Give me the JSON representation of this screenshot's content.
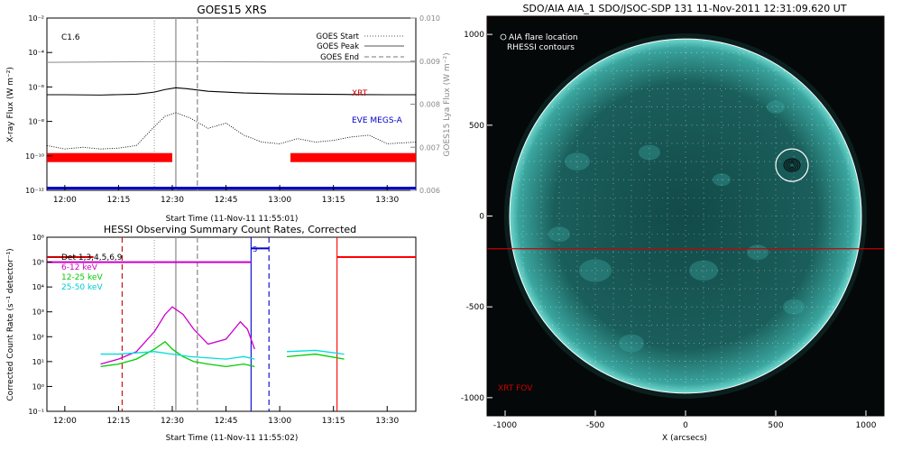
{
  "chart_data": [
    {
      "id": "goes",
      "type": "line",
      "title": "GOES15 XRS",
      "xlabel": "Start Time (11-Nov-11 11:55:01)",
      "ylabel": "X-ray Flux (W m⁻²)",
      "ylabel2": "GOES15 Lya Flux (W m⁻²)",
      "xlim": [
        "11:55",
        "13:38"
      ],
      "xticks": [
        "12:00",
        "12:15",
        "12:30",
        "12:45",
        "13:00",
        "13:15",
        "13:30"
      ],
      "ylim_log10": [
        -12,
        -2
      ],
      "yticks": [
        "10⁻¹²",
        "10⁻¹⁰",
        "10⁻⁸",
        "10⁻⁶",
        "10⁻⁴",
        "10⁻²"
      ],
      "ylim2": [
        0.006,
        0.01
      ],
      "yticks2": [
        "0.006",
        "0.007",
        "0.008",
        "0.009",
        "0.010"
      ],
      "flare_class": "C1.6",
      "legend": {
        "placement": "top-right",
        "items": [
          {
            "label": "GOES Start",
            "style": "dotted"
          },
          {
            "label": "GOES Peak",
            "style": "solid"
          },
          {
            "label": "GOES End",
            "style": "dashed"
          }
        ]
      },
      "event_times": {
        "start": "12:25",
        "peak": "12:31",
        "end": "12:37"
      },
      "series": [
        {
          "name": "",
          "color": "#000000",
          "x": [
            "11:55",
            "12:00",
            "12:10",
            "12:20",
            "12:25",
            "12:28",
            "12:31",
            "12:34",
            "12:40",
            "12:50",
            "13:00",
            "13:10",
            "13:20",
            "13:30",
            "13:38"
          ],
          "log10": [
            -6.45,
            -6.45,
            -6.47,
            -6.42,
            -6.3,
            -6.15,
            -6.05,
            -6.1,
            -6.25,
            -6.35,
            -6.4,
            -6.42,
            -6.44,
            -6.45,
            -6.45
          ]
        },
        {
          "name": "",
          "color": "#000000",
          "style": "dotted",
          "x": [
            "11:55",
            "12:00",
            "12:05",
            "12:10",
            "12:15",
            "12:20",
            "12:25",
            "12:28",
            "12:31",
            "12:35",
            "12:40",
            "12:45",
            "12:50",
            "12:55",
            "13:00",
            "13:05",
            "13:10",
            "13:15",
            "13:20",
            "13:25",
            "13:30",
            "13:38"
          ],
          "log10": [
            -9.4,
            -9.6,
            -9.5,
            -9.6,
            -9.55,
            -9.4,
            -8.3,
            -7.7,
            -7.5,
            -7.8,
            -8.4,
            -8.1,
            -8.8,
            -9.2,
            -9.3,
            -9.0,
            -9.2,
            -9.1,
            -8.9,
            -8.8,
            -9.3,
            -9.2
          ]
        }
      ],
      "lya_series": {
        "name": "",
        "color": "#888888",
        "x": [
          "11:55",
          "12:30",
          "13:00",
          "13:38"
        ],
        "values": [
          0.00897,
          0.00899,
          0.00898,
          0.00898
        ]
      },
      "bars": [
        {
          "name": "XRT",
          "color": "#ff0000",
          "label_color": "#cc0000",
          "spans": [
            [
              "11:55",
              "12:30"
            ],
            [
              "13:03",
              "13:38"
            ]
          ]
        },
        {
          "name": "EVE MEGS-A",
          "color": "#0000cc",
          "label_color": "#0000cc",
          "spans": [
            [
              "11:55",
              "13:38"
            ]
          ]
        }
      ]
    },
    {
      "id": "hessi",
      "type": "line",
      "title": "HESSI Observing Summary Count Rates, Corrected",
      "xlabel": "Start Time (11-Nov-11 11:55:02)",
      "ylabel": "Corrected Count Rate (s⁻¹ detector⁻¹)",
      "xlim": [
        "11:55",
        "13:38"
      ],
      "xticks": [
        "12:00",
        "12:15",
        "12:30",
        "12:45",
        "13:00",
        "13:15",
        "13:30"
      ],
      "ylim_log10": [
        -1,
        6
      ],
      "yticks": [
        "10⁻¹",
        "10⁰",
        "10¹",
        "10²",
        "10³",
        "10⁴",
        "10⁵",
        "10⁶"
      ],
      "legend": {
        "placement": "top-left",
        "header": "Det 1,3,4,5,6,9",
        "items": [
          {
            "label": "6-12 keV",
            "color": "#cc00cc"
          },
          {
            "label": "12-25 keV",
            "color": "#00cc00"
          },
          {
            "label": "25-50 keV",
            "color": "#00dddd"
          }
        ]
      },
      "event_times": {
        "start": "12:25",
        "peak": "12:31",
        "end": "12:37"
      },
      "attenuator_label": "S",
      "series": [
        {
          "name": "6-12 keV",
          "color": "#cc00cc",
          "x": [
            "12:10",
            "12:15",
            "12:20",
            "12:25",
            "12:28",
            "12:30",
            "12:33",
            "12:36",
            "12:40",
            "12:45",
            "12:49",
            "12:51",
            "12:53"
          ],
          "log10": [
            0.9,
            1.1,
            1.4,
            2.2,
            2.9,
            3.2,
            2.9,
            2.3,
            1.7,
            1.9,
            2.6,
            2.3,
            1.5
          ]
        },
        {
          "name": "12-25 keV",
          "color": "#00cc00",
          "x": [
            "12:10",
            "12:15",
            "12:20",
            "12:25",
            "12:28",
            "12:30",
            "12:33",
            "12:36",
            "12:40",
            "12:45",
            "12:50",
            "12:53"
          ],
          "log10": [
            0.8,
            0.9,
            1.1,
            1.5,
            1.8,
            1.5,
            1.2,
            1.0,
            0.9,
            0.8,
            0.9,
            0.8
          ]
        },
        {
          "name": "12-25 keV",
          "color": "#00cc00",
          "x": [
            "13:02",
            "13:10",
            "13:18"
          ],
          "log10": [
            1.2,
            1.3,
            1.1
          ]
        },
        {
          "name": "25-50 keV",
          "color": "#00dddd",
          "x": [
            "12:10",
            "12:15",
            "12:20",
            "12:25",
            "12:30",
            "12:35",
            "12:40",
            "12:45",
            "12:50",
            "12:53"
          ],
          "log10": [
            1.3,
            1.3,
            1.35,
            1.4,
            1.3,
            1.2,
            1.15,
            1.1,
            1.2,
            1.1
          ]
        },
        {
          "name": "25-50 keV",
          "color": "#00dddd",
          "x": [
            "13:02",
            "13:10",
            "13:18"
          ],
          "log10": [
            1.4,
            1.45,
            1.3
          ]
        }
      ],
      "top_bars": [
        {
          "color": "#cc00cc",
          "spans": [
            [
              "11:55",
              "12:52"
            ]
          ],
          "log10": 5.0
        },
        {
          "color": "#0000cc",
          "spans": [
            [
              "12:52",
              "12:57"
            ]
          ],
          "log10": 5.55
        },
        {
          "color": "#ff0000",
          "spans": [
            [
              "13:16",
              "13:38"
            ]
          ],
          "log10": 5.2
        },
        {
          "color": "#cc0000",
          "spans": [
            [
              "11:55",
              "12:08"
            ]
          ],
          "log10": 5.2
        }
      ],
      "vertical_lines": [
        {
          "x": "12:16",
          "color": "#cc0000",
          "style": "dashed"
        },
        {
          "x": "12:52",
          "color": "#0000cc",
          "style": "solid"
        },
        {
          "x": "12:57",
          "color": "#0000cc",
          "style": "dashed"
        },
        {
          "x": "13:16",
          "color": "#ff0000",
          "style": "solid"
        }
      ]
    },
    {
      "id": "aia",
      "type": "heatmap",
      "title": "SDO/AIA AIA_1 SDO/JSOC-SDP 131 11-Nov-2011 12:31:09.620 UT",
      "xlabel": "X (arcsecs)",
      "ylabel": "",
      "xlim": [
        -1100,
        1100
      ],
      "ylim": [
        -1100,
        1100
      ],
      "xticks": [
        "-1000",
        "-500",
        "0",
        "500",
        "1000"
      ],
      "yticks": [
        "-1000",
        "-500",
        "0",
        "500",
        "1000"
      ],
      "legend": {
        "placement": "top-left",
        "items": [
          {
            "label": "AIA flare location"
          },
          {
            "label": "RHESSI contours"
          }
        ]
      },
      "solar_radius": 975,
      "flare_location": {
        "x": 590,
        "y": 280
      },
      "xrt_fov": {
        "label": "XRT FOV",
        "x": [
          -1100,
          1100
        ],
        "y": [
          -180,
          1100
        ],
        "color": "#cc0000"
      },
      "disk_color": "#1a6a66",
      "background": "#050808"
    }
  ]
}
